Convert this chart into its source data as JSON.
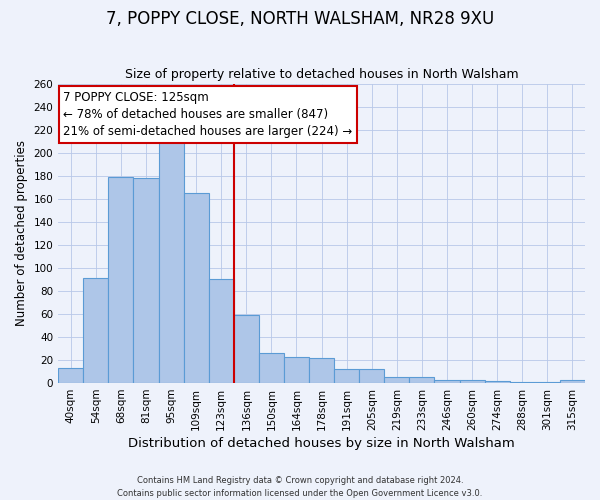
{
  "title": "7, POPPY CLOSE, NORTH WALSHAM, NR28 9XU",
  "subtitle": "Size of property relative to detached houses in North Walsham",
  "xlabel": "Distribution of detached houses by size in North Walsham",
  "ylabel": "Number of detached properties",
  "categories": [
    "40sqm",
    "54sqm",
    "68sqm",
    "81sqm",
    "95sqm",
    "109sqm",
    "123sqm",
    "136sqm",
    "150sqm",
    "164sqm",
    "178sqm",
    "191sqm",
    "205sqm",
    "219sqm",
    "233sqm",
    "246sqm",
    "260sqm",
    "274sqm",
    "288sqm",
    "301sqm",
    "315sqm"
  ],
  "values": [
    13,
    91,
    179,
    178,
    209,
    165,
    90,
    59,
    26,
    23,
    22,
    12,
    12,
    5,
    5,
    3,
    3,
    2,
    1,
    1,
    3
  ],
  "bar_color": "#aec6e8",
  "bar_edge_color": "#5b9bd5",
  "vline_x_index": 6,
  "vline_color": "#cc0000",
  "annotation_line1": "7 POPPY CLOSE: 125sqm",
  "annotation_line2": "← 78% of detached houses are smaller (847)",
  "annotation_line3": "21% of semi-detached houses are larger (224) →",
  "annotation_box_color": "#ffffff",
  "annotation_box_edge_color": "#cc0000",
  "ylim": [
    0,
    260
  ],
  "yticks": [
    0,
    20,
    40,
    60,
    80,
    100,
    120,
    140,
    160,
    180,
    200,
    220,
    240,
    260
  ],
  "footnote1": "Contains HM Land Registry data © Crown copyright and database right 2024.",
  "footnote2": "Contains public sector information licensed under the Open Government Licence v3.0.",
  "background_color": "#eef2fb",
  "title_fontsize": 12,
  "xlabel_fontsize": 9.5,
  "ylabel_fontsize": 8.5,
  "tick_fontsize": 7.5,
  "annotation_fontsize": 8.5
}
